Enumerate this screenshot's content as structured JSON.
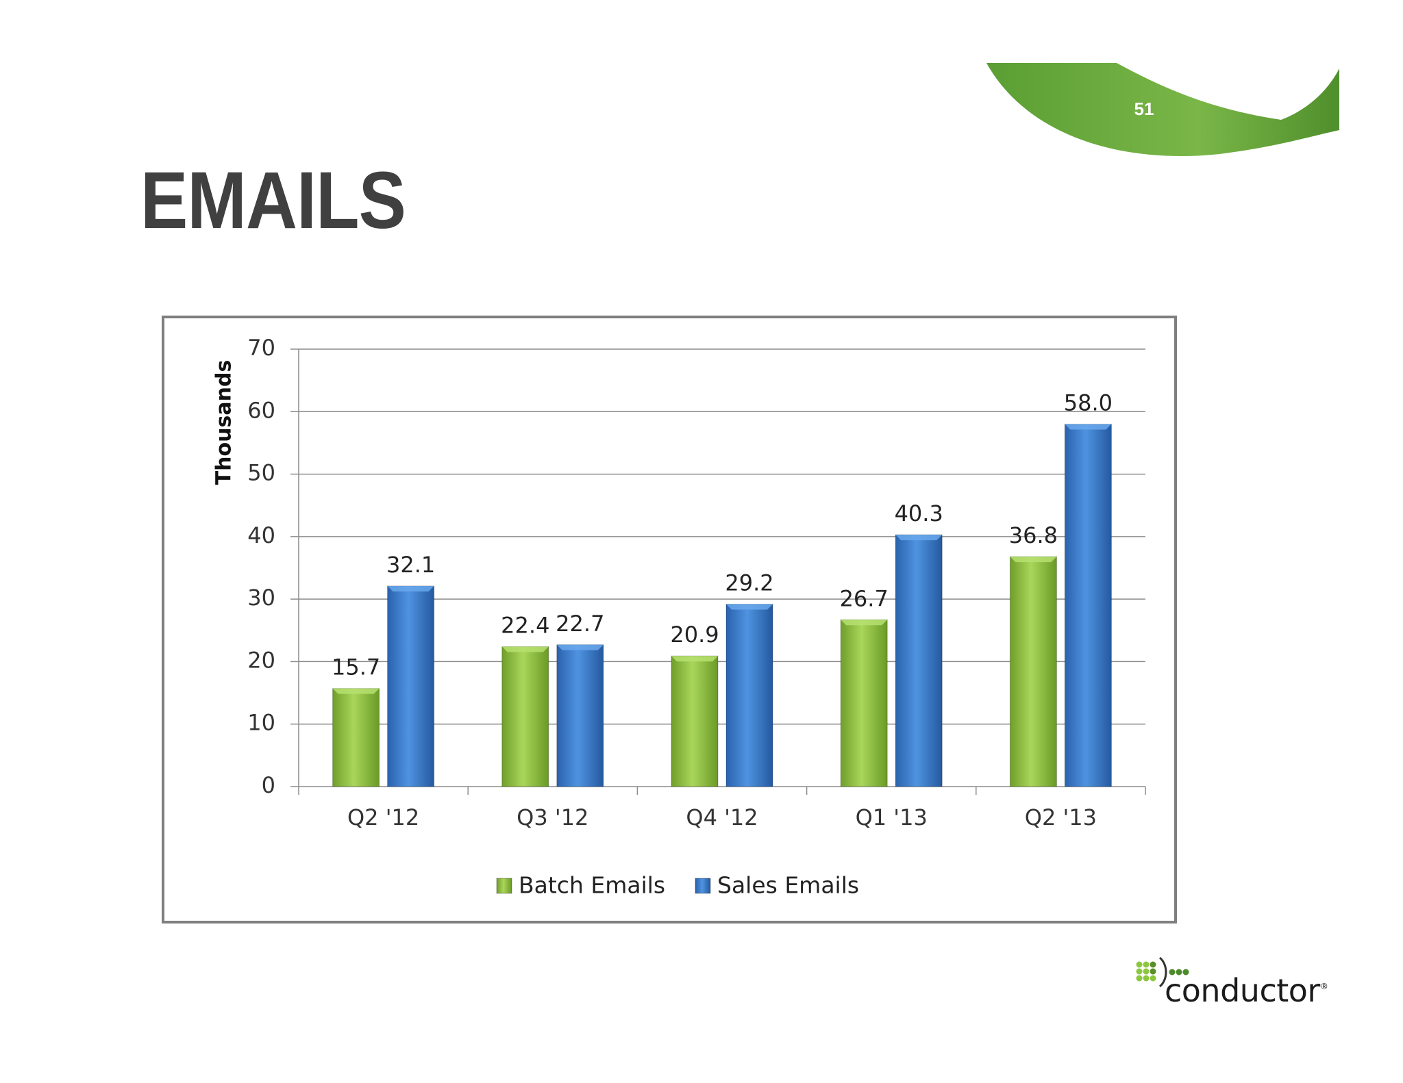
{
  "slide": {
    "number": "51",
    "title": "EMAILS",
    "accent_color": "#6aaa3a"
  },
  "logo": {
    "text": "conductor",
    "mark": "®"
  },
  "chart_data": {
    "type": "bar",
    "categories": [
      "Q2 '12",
      "Q3 '12",
      "Q4 '12",
      "Q1 '13",
      "Q2 '13"
    ],
    "series": [
      {
        "name": "Batch Emails",
        "values": [
          15.7,
          22.4,
          20.9,
          26.7,
          36.8
        ],
        "color": "#8dc63f"
      },
      {
        "name": "Sales Emails",
        "values": [
          32.1,
          22.7,
          29.2,
          40.3,
          58.0
        ],
        "color": "#3d7fd0"
      }
    ],
    "data_labels": [
      [
        "15.7",
        "22.4",
        "20.9",
        "26.7",
        "36.8"
      ],
      [
        "32.1",
        "22.7",
        "29.2",
        "40.3",
        "58.0"
      ]
    ],
    "ylabel": "Thousands",
    "xlabel": "",
    "ylim": [
      0,
      70
    ],
    "yticks": [
      0,
      10,
      20,
      30,
      40,
      50,
      60,
      70
    ],
    "grid": true,
    "legend": "bottom"
  }
}
